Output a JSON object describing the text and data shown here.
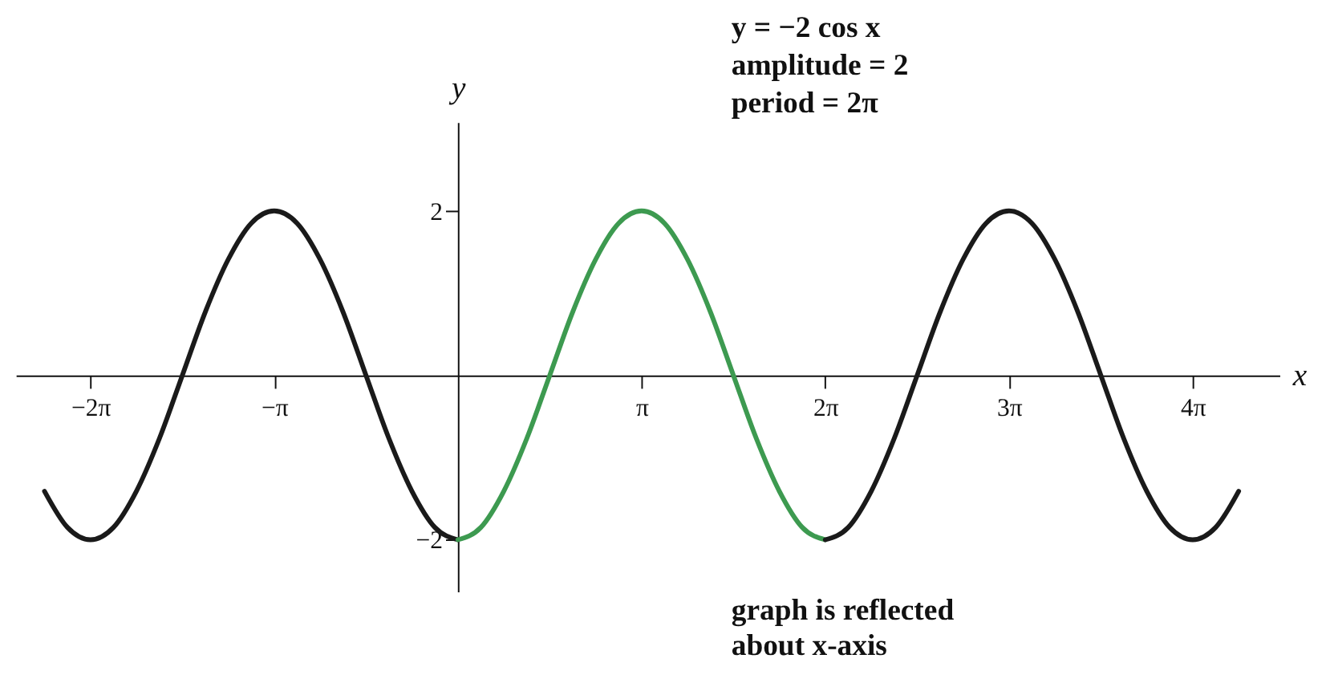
{
  "chart_data": {
    "type": "line",
    "xlabel": "x",
    "ylabel": "y",
    "annotations": [
      "y = −2 cos x",
      "amplitude = 2",
      "period = 2π",
      "graph is reflected",
      "about x-axis"
    ],
    "xlim": [
      -7.56,
      14.05
    ],
    "ylim": [
      -2.63,
      3.08
    ],
    "xticks": [
      {
        "value": -6.283,
        "label": "−2π"
      },
      {
        "value": -3.142,
        "label": "−π"
      },
      {
        "value": 3.142,
        "label": "π"
      },
      {
        "value": 6.283,
        "label": "2π"
      },
      {
        "value": 9.425,
        "label": "3π"
      },
      {
        "value": 12.566,
        "label": "4π"
      }
    ],
    "yticks": [
      {
        "value": -2,
        "label": "−2"
      },
      2
    ],
    "grid": false,
    "marker": "none",
    "line_style": "solid",
    "series": [
      {
        "color": "#1a1a1a",
        "x": [
          -7.069,
          -6.676,
          -6.283,
          -5.89,
          -5.498,
          -5.105,
          -4.712,
          -4.32,
          -3.927,
          -3.534,
          -3.142,
          -2.749,
          -2.356,
          -1.963,
          -1.571,
          -1.178,
          -0.785,
          -0.393,
          0
        ],
        "values": [
          -1.41,
          -1.85,
          -2,
          -1.85,
          -1.41,
          -0.77,
          0,
          0.77,
          1.41,
          1.85,
          2,
          1.85,
          1.41,
          0.77,
          0,
          -0.77,
          -1.41,
          -1.85,
          -2
        ]
      },
      {
        "color": "#3d9a50",
        "x": [
          0,
          0.393,
          0.785,
          1.178,
          1.571,
          1.963,
          2.356,
          2.749,
          3.142,
          3.534,
          3.927,
          4.32,
          4.712,
          5.105,
          5.498,
          5.89,
          6.283
        ],
        "values": [
          -2,
          -1.85,
          -1.41,
          -0.77,
          0,
          0.77,
          1.41,
          1.85,
          2,
          1.85,
          1.41,
          0.77,
          0,
          -0.77,
          -1.41,
          -1.85,
          -2
        ]
      },
      {
        "color": "#1a1a1a",
        "x": [
          6.283,
          6.676,
          7.069,
          7.461,
          7.854,
          8.247,
          8.639,
          9.032,
          9.425,
          9.817,
          10.21,
          10.603,
          10.996,
          11.388,
          11.781,
          12.174,
          12.566,
          12.959,
          13.352
        ],
        "values": [
          -2,
          -1.85,
          -1.41,
          -0.77,
          0,
          0.77,
          1.41,
          1.85,
          2,
          1.85,
          1.41,
          0.77,
          0,
          -0.77,
          -1.41,
          -1.85,
          -2,
          -1.85,
          -1.41
        ]
      }
    ]
  }
}
